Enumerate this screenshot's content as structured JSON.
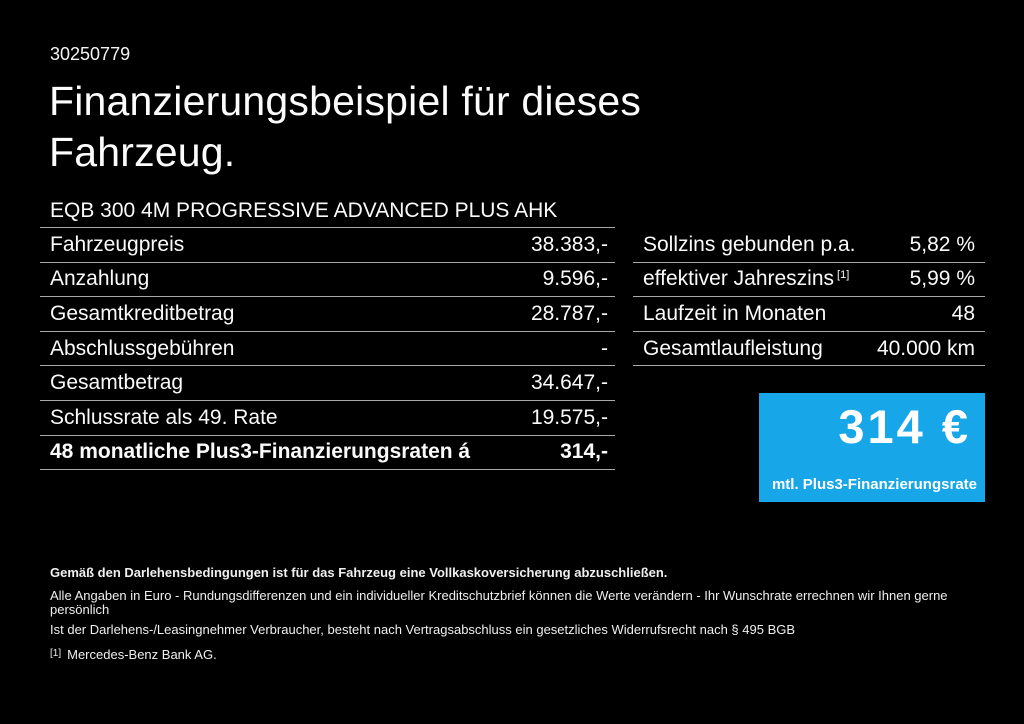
{
  "page": {
    "background_color": "#000000",
    "text_color": "#fafafa",
    "divider_color": "#a9a9a9",
    "accent_blue": "#17a6e8"
  },
  "header": {
    "doc_number": "30250779",
    "title_line1": "Finanzierungsbeispiel für dieses",
    "title_line2": "Fahrzeug."
  },
  "vehicle": {
    "model": "EQB 300 4M PROGRESSIVE ADVANCED PLUS AHK"
  },
  "finance_table": {
    "rows": [
      {
        "label": "Fahrzeugpreis",
        "value": "38.383,-"
      },
      {
        "label": "Anzahlung",
        "value": "9.596,-"
      },
      {
        "label": "Gesamtkreditbetrag",
        "value": "28.787,-"
      },
      {
        "label": "Abschlussgebühren",
        "value": "-"
      },
      {
        "label": "Gesamtbetrag",
        "value": "34.647,-"
      },
      {
        "label": "Schlussrate als 49. Rate",
        "value": "19.575,-"
      },
      {
        "label": "48 monatliche Plus3-Finanzierungsraten á",
        "value": "314,-"
      }
    ]
  },
  "conditions_table": {
    "rows": [
      {
        "label": "Sollzins gebunden p.a.",
        "value": "5,82 %"
      },
      {
        "label": "effektiver Jahreszins",
        "label_sup": "[1]",
        "value": "5,99 %"
      },
      {
        "label": "Laufzeit in Monaten",
        "value": "48"
      },
      {
        "label": "Gesamtlaufleistung",
        "value": "40.000 km"
      }
    ]
  },
  "rate_box": {
    "amount": "314 €",
    "caption": "mtl. Plus3-Finanzierungsrate"
  },
  "footer": {
    "bold_note": "Gemäß den Darlehensbedingungen ist für das Fahrzeug eine Vollkaskoversicherung abzuschließen.",
    "note_line1": "Alle Angaben in Euro - Rundungsdifferenzen und ein individueller Kreditschutzbrief können die Werte verändern - Ihr Wunschrate errechnen wir Ihnen gerne persönlich",
    "note_line2": "Ist der Darlehens-/Leasingnehmer Verbraucher, besteht nach Vertragsabschluss ein gesetzliches Widerrufsrecht nach § 495 BGB",
    "footnote_marker": "[1]",
    "footnote_text": "Mercedes-Benz Bank AG."
  }
}
